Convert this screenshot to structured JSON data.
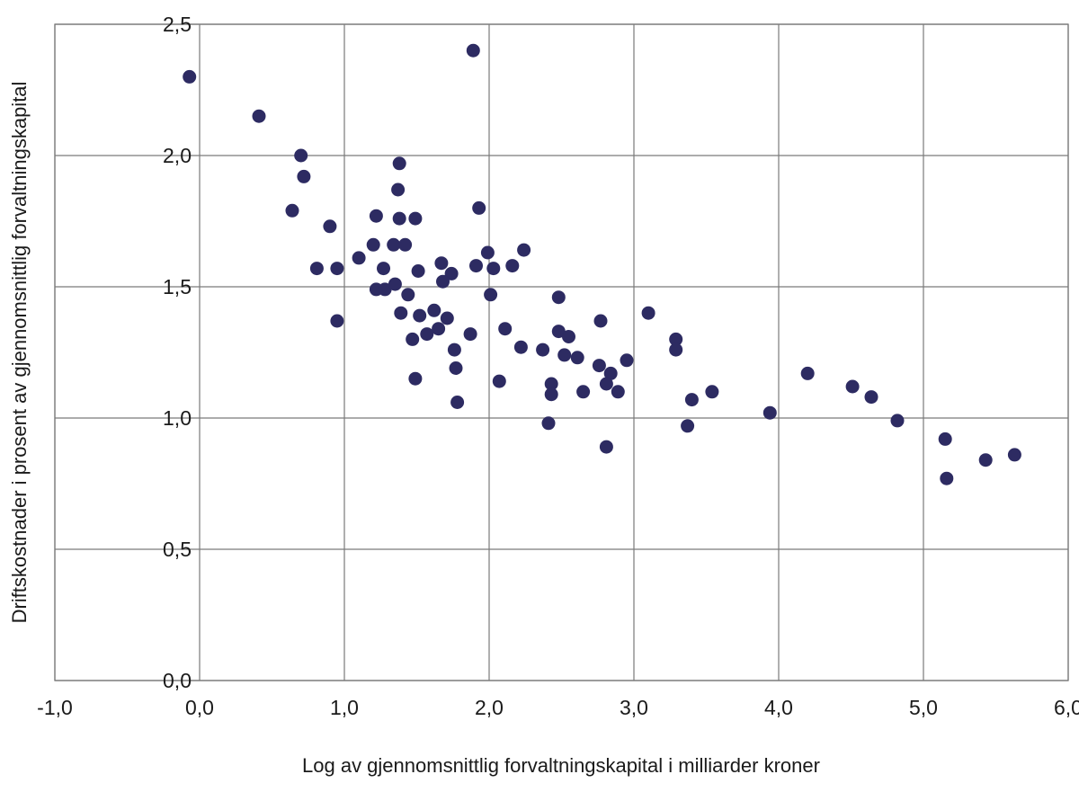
{
  "figure": {
    "background": "#ffffff"
  },
  "chart_data": {
    "type": "scatter",
    "title": "",
    "xlabel": "Log av gjennomsnittlig forvaltningskapital i milliarder kroner",
    "ylabel": "Driftskostnader i prosent av gjennomsnittlig forvaltningskapital",
    "xlim": [
      -1.0,
      6.0
    ],
    "ylim": [
      0.0,
      2.5
    ],
    "grid": true,
    "legend_position": "none",
    "xticks": {
      "values": [
        -1,
        0,
        1,
        2,
        3,
        4,
        5,
        6
      ],
      "labels": [
        "-1,0",
        "0,0",
        "1,0",
        "2,0",
        "3,0",
        "4,0",
        "5,0",
        "6,0"
      ]
    },
    "yticks": {
      "values": [
        0,
        0.5,
        1,
        1.5,
        2,
        2.5
      ],
      "labels": [
        "0,0",
        "0,5",
        "1,0",
        "1,5",
        "2,0",
        "2,5"
      ]
    },
    "marker": {
      "shape": "circle",
      "radius_px": 7.5,
      "color": "#2d2b62"
    },
    "grid_color": "#7a7a7a",
    "text_color": "#1a1a1a",
    "points": [
      [
        -0.07,
        2.3
      ],
      [
        0.41,
        2.15
      ],
      [
        0.7,
        2.0
      ],
      [
        0.72,
        1.92
      ],
      [
        0.64,
        1.79
      ],
      [
        0.9,
        1.73
      ],
      [
        1.89,
        2.4
      ],
      [
        1.38,
        1.97
      ],
      [
        1.37,
        1.87
      ],
      [
        1.22,
        1.77
      ],
      [
        1.38,
        1.76
      ],
      [
        1.49,
        1.76
      ],
      [
        1.93,
        1.8
      ],
      [
        1.2,
        1.66
      ],
      [
        1.34,
        1.66
      ],
      [
        1.42,
        1.66
      ],
      [
        1.1,
        1.61
      ],
      [
        0.81,
        1.57
      ],
      [
        0.95,
        1.57
      ],
      [
        1.27,
        1.57
      ],
      [
        1.51,
        1.56
      ],
      [
        1.67,
        1.59
      ],
      [
        1.74,
        1.55
      ],
      [
        1.68,
        1.52
      ],
      [
        1.99,
        1.63
      ],
      [
        1.91,
        1.58
      ],
      [
        2.03,
        1.57
      ],
      [
        2.16,
        1.58
      ],
      [
        2.24,
        1.64
      ],
      [
        1.22,
        1.49
      ],
      [
        1.28,
        1.49
      ],
      [
        1.35,
        1.51
      ],
      [
        1.44,
        1.47
      ],
      [
        2.01,
        1.47
      ],
      [
        2.48,
        1.46
      ],
      [
        1.39,
        1.4
      ],
      [
        1.52,
        1.39
      ],
      [
        1.62,
        1.41
      ],
      [
        1.71,
        1.38
      ],
      [
        0.95,
        1.37
      ],
      [
        1.47,
        1.3
      ],
      [
        1.57,
        1.32
      ],
      [
        1.65,
        1.34
      ],
      [
        1.87,
        1.32
      ],
      [
        1.76,
        1.26
      ],
      [
        1.77,
        1.19
      ],
      [
        1.49,
        1.15
      ],
      [
        1.78,
        1.06
      ],
      [
        2.07,
        1.14
      ],
      [
        2.11,
        1.34
      ],
      [
        2.22,
        1.27
      ],
      [
        2.37,
        1.26
      ],
      [
        2.48,
        1.33
      ],
      [
        2.55,
        1.31
      ],
      [
        2.52,
        1.24
      ],
      [
        2.61,
        1.23
      ],
      [
        2.43,
        1.13
      ],
      [
        2.43,
        1.09
      ],
      [
        2.65,
        1.1
      ],
      [
        2.41,
        0.98
      ],
      [
        2.77,
        1.37
      ],
      [
        3.1,
        1.4
      ],
      [
        3.29,
        1.3
      ],
      [
        3.29,
        1.26
      ],
      [
        3.4,
        1.07
      ],
      [
        3.54,
        1.1
      ],
      [
        3.37,
        0.97
      ],
      [
        2.76,
        1.2
      ],
      [
        2.84,
        1.17
      ],
      [
        2.95,
        1.22
      ],
      [
        2.81,
        1.13
      ],
      [
        2.89,
        1.1
      ],
      [
        2.81,
        0.89
      ],
      [
        3.94,
        1.02
      ],
      [
        4.2,
        1.17
      ],
      [
        4.51,
        1.12
      ],
      [
        4.64,
        1.08
      ],
      [
        4.82,
        0.99
      ],
      [
        5.15,
        0.92
      ],
      [
        5.43,
        0.84
      ],
      [
        5.63,
        0.86
      ],
      [
        5.16,
        0.77
      ]
    ]
  }
}
